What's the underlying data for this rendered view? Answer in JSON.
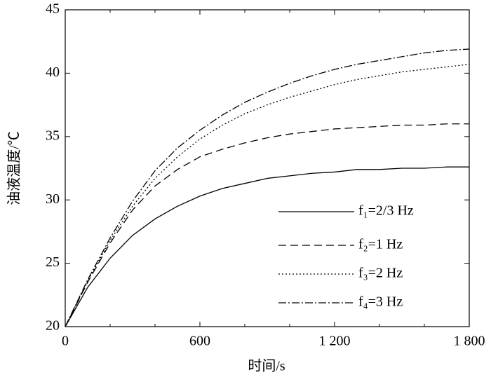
{
  "chart_data": {
    "type": "line",
    "xlabel": "时间/s",
    "ylabel": "油液温度/℃",
    "x": [
      0,
      100,
      200,
      300,
      400,
      500,
      600,
      700,
      800,
      900,
      1000,
      1100,
      1200,
      1300,
      1400,
      1500,
      1600,
      1700,
      1800
    ],
    "series": [
      {
        "name": "f₁=2/3 Hz",
        "color": "#000000",
        "linestyle": "solid",
        "values": [
          20,
          23.1,
          25.4,
          27.2,
          28.5,
          29.5,
          30.3,
          30.9,
          31.3,
          31.7,
          31.9,
          32.1,
          32.2,
          32.4,
          32.4,
          32.5,
          32.5,
          32.6,
          32.6
        ]
      },
      {
        "name": "f₂=1 Hz",
        "color": "#000000",
        "linestyle": "dashed",
        "values": [
          20,
          23.5,
          26.6,
          29.2,
          31.1,
          32.4,
          33.4,
          34.0,
          34.5,
          34.9,
          35.2,
          35.4,
          35.6,
          35.7,
          35.8,
          35.9,
          35.9,
          36.0,
          36.0
        ]
      },
      {
        "name": "f₃=2 Hz",
        "color": "#000000",
        "linestyle": "dotted",
        "values": [
          20,
          23.6,
          26.8,
          29.5,
          31.7,
          33.4,
          34.8,
          35.9,
          36.8,
          37.5,
          38.1,
          38.6,
          39.1,
          39.5,
          39.8,
          40.1,
          40.3,
          40.5,
          40.7
        ]
      },
      {
        "name": "f₄=3 Hz",
        "color": "#000000",
        "linestyle": "dashdot",
        "values": [
          20,
          23.7,
          27.0,
          29.9,
          32.3,
          34.1,
          35.5,
          36.7,
          37.7,
          38.5,
          39.2,
          39.8,
          40.3,
          40.7,
          41.0,
          41.3,
          41.6,
          41.8,
          41.9
        ]
      }
    ],
    "xlim": [
      0,
      1800
    ],
    "xticks": [
      0,
      600,
      {
        "value": 1200,
        "label": "1 200"
      },
      {
        "value": 1800,
        "label": "1 800"
      }
    ],
    "xminorticks": [
      200,
      400,
      800,
      1000,
      1400,
      1600
    ],
    "ylim": [
      20,
      45
    ],
    "yticks": [
      20,
      25,
      30,
      35,
      40,
      45
    ],
    "grid": false,
    "legend": "lower right"
  }
}
